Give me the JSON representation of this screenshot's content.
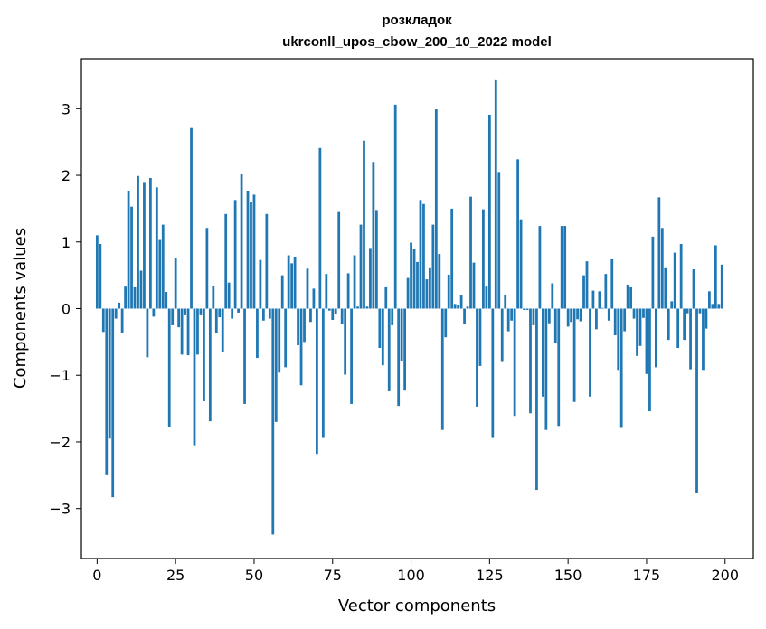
{
  "chart_data": {
    "type": "bar",
    "title_line1": "розкладок",
    "title_line2": "ukrconll_upos_cbow_200_10_2022 model",
    "xlabel": "Vector components",
    "ylabel": "Components values",
    "xlim": [
      -5,
      209
    ],
    "ylim": [
      -3.75,
      3.75
    ],
    "xticks": [
      0,
      25,
      50,
      75,
      100,
      125,
      150,
      175,
      200
    ],
    "yticks": [
      -3,
      -2,
      -1,
      0,
      1,
      2,
      3
    ],
    "bar_color": "#1f77b4",
    "grid": false,
    "x": [
      0,
      1,
      2,
      3,
      4,
      5,
      6,
      7,
      8,
      9,
      10,
      11,
      12,
      13,
      14,
      15,
      16,
      17,
      18,
      19,
      20,
      21,
      22,
      23,
      24,
      25,
      26,
      27,
      28,
      29,
      30,
      31,
      32,
      33,
      34,
      35,
      36,
      37,
      38,
      39,
      40,
      41,
      42,
      43,
      44,
      45,
      46,
      47,
      48,
      49,
      50,
      51,
      52,
      53,
      54,
      55,
      56,
      57,
      58,
      59,
      60,
      61,
      62,
      63,
      64,
      65,
      66,
      67,
      68,
      69,
      70,
      71,
      72,
      73,
      74,
      75,
      76,
      77,
      78,
      79,
      80,
      81,
      82,
      83,
      84,
      85,
      86,
      87,
      88,
      89,
      90,
      91,
      92,
      93,
      94,
      95,
      96,
      97,
      98,
      99,
      100,
      101,
      102,
      103,
      104,
      105,
      106,
      107,
      108,
      109,
      110,
      111,
      112,
      113,
      114,
      115,
      116,
      117,
      118,
      119,
      120,
      121,
      122,
      123,
      124,
      125,
      126,
      127,
      128,
      129,
      130,
      131,
      132,
      133,
      134,
      135,
      136,
      137,
      138,
      139,
      140,
      141,
      142,
      143,
      144,
      145,
      146,
      147,
      148,
      149,
      150,
      151,
      152,
      153,
      154,
      155,
      156,
      157,
      158,
      159,
      160,
      161,
      162,
      163,
      164,
      165,
      166,
      167,
      168,
      169,
      170,
      171,
      172,
      173,
      174,
      175,
      176,
      177,
      178,
      179,
      180,
      181,
      182,
      183,
      184,
      185,
      186,
      187,
      188,
      189,
      190,
      191,
      192,
      193,
      194,
      195,
      196,
      197,
      198,
      199
    ],
    "values": [
      1.1,
      0.97,
      -0.35,
      -2.5,
      -1.95,
      -2.83,
      -0.15,
      0.09,
      -0.37,
      0.33,
      1.77,
      1.53,
      0.32,
      1.99,
      0.57,
      1.9,
      -0.73,
      1.96,
      -0.12,
      1.82,
      1.03,
      1.26,
      0.25,
      -1.77,
      -0.25,
      0.76,
      -0.28,
      -0.69,
      -0.1,
      -0.7,
      2.71,
      -2.05,
      -0.69,
      -0.1,
      -1.39,
      1.21,
      -1.69,
      0.34,
      -0.36,
      -0.13,
      -0.65,
      1.42,
      0.39,
      -0.15,
      1.63,
      -0.06,
      2.02,
      -1.43,
      1.77,
      1.6,
      1.71,
      -0.74,
      0.73,
      -0.18,
      1.42,
      -0.15,
      -3.39,
      -1.7,
      -0.96,
      0.5,
      -0.88,
      0.8,
      0.68,
      0.78,
      -0.55,
      -1.15,
      -0.5,
      0.6,
      -0.2,
      0.3,
      -2.18,
      2.41,
      -1.94,
      0.52,
      -0.03,
      -0.17,
      -0.08,
      1.45,
      -0.23,
      -0.99,
      0.53,
      -1.43,
      0.8,
      0.03,
      1.26,
      2.52,
      0.03,
      0.91,
      2.2,
      1.48,
      -0.59,
      -0.85,
      0.32,
      -1.24,
      -0.25,
      3.06,
      -1.46,
      -0.78,
      -1.23,
      0.46,
      0.99,
      0.9,
      0.7,
      1.63,
      1.57,
      0.44,
      0.62,
      1.26,
      2.99,
      0.82,
      -1.82,
      -0.43,
      0.51,
      1.5,
      0.07,
      0.05,
      0.21,
      -0.23,
      0.03,
      1.68,
      0.69,
      -1.47,
      -0.86,
      1.49,
      0.33,
      2.91,
      -1.94,
      3.44,
      2.05,
      -0.8,
      0.21,
      -0.34,
      -0.18,
      -1.61,
      2.24,
      1.34,
      -0.02,
      -0.02,
      -1.57,
      -0.25,
      -2.72,
      1.24,
      -1.32,
      -1.82,
      -0.22,
      0.38,
      -0.52,
      -1.76,
      1.24,
      1.24,
      -0.27,
      -0.2,
      -1.4,
      -0.16,
      -0.19,
      0.5,
      0.71,
      -1.32,
      0.27,
      -0.31,
      0.26,
      0.01,
      0.52,
      -0.18,
      0.74,
      -0.4,
      -0.92,
      -1.79,
      -0.34,
      0.36,
      0.32,
      -0.15,
      -0.71,
      -0.56,
      -0.14,
      -0.98,
      -1.54,
      1.08,
      -0.88,
      1.67,
      1.21,
      0.62,
      -0.47,
      0.11,
      0.84,
      -0.59,
      0.97,
      -0.47,
      -0.07,
      -0.91,
      0.59,
      -2.77,
      -0.07,
      -0.92,
      -0.3,
      0.26,
      0.07,
      0.95,
      0.07,
      0.66
    ]
  }
}
